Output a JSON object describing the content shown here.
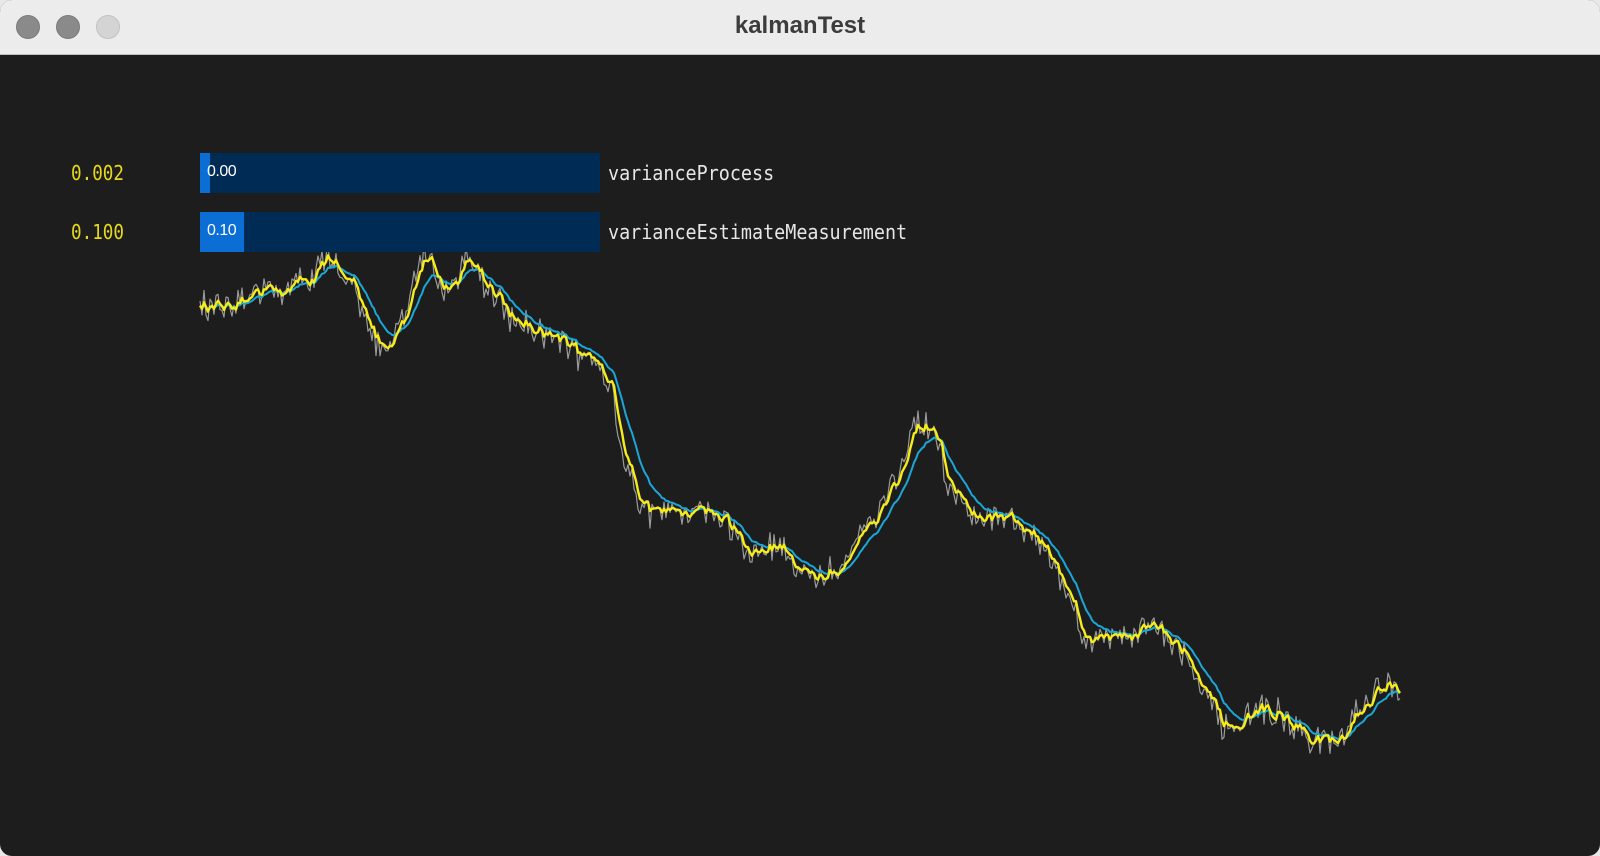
{
  "window": {
    "title": "kalmanTest"
  },
  "sliders": [
    {
      "value_text": "0.002",
      "bar_text": "0.00",
      "name": "varianceProcess",
      "fraction": 0.025
    },
    {
      "value_text": "0.100",
      "bar_text": "0.10",
      "name": "varianceEstimateMeasurement",
      "fraction": 0.11
    }
  ],
  "colors": {
    "background": "#1d1d1d",
    "raw_signal": "#9a9a9a",
    "filter_yellow": "#f5ec1a",
    "filter_cyan": "#1aa7d8",
    "slider_track": "#002b55",
    "slider_fill": "#0a6ed4",
    "value_text": "#e6d81a"
  }
}
